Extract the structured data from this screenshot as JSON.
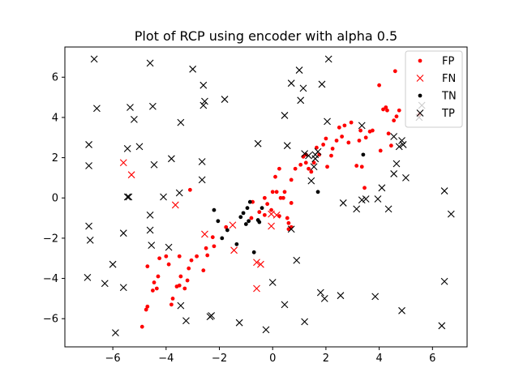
{
  "chart_data": {
    "type": "scatter",
    "title": "Plot of RCP using encoder with alpha 0.5",
    "xlabel": "",
    "ylabel": "",
    "xlim": [
      -7.8,
      7.3
    ],
    "ylim": [
      -7.4,
      7.5
    ],
    "xticks": [
      -6,
      -4,
      -2,
      0,
      2,
      4,
      6
    ],
    "yticks": [
      -6,
      -4,
      -2,
      0,
      2,
      4,
      6
    ],
    "grid": false,
    "legend_position": "top-right",
    "series": [
      {
        "name": "FP",
        "marker": "dot",
        "color": "#ff0000",
        "points": [
          [
            -4.9,
            -6.4
          ],
          [
            -4.7,
            -5.4
          ],
          [
            -4.75,
            -5.55
          ],
          [
            -4.5,
            -4.6
          ],
          [
            -4.45,
            -4.2
          ],
          [
            -4.3,
            -3.9
          ],
          [
            -4.35,
            -4.5
          ],
          [
            -4.7,
            -3.4
          ],
          [
            -4.25,
            -3.0
          ],
          [
            -4.0,
            -2.9
          ],
          [
            -3.9,
            -3.3
          ],
          [
            -3.8,
            -5.3
          ],
          [
            -3.75,
            -5.0
          ],
          [
            -3.6,
            -4.4
          ],
          [
            -3.5,
            -4.35
          ],
          [
            -3.45,
            -3.9
          ],
          [
            -3.5,
            -2.9
          ],
          [
            -3.3,
            -4.5
          ],
          [
            -3.2,
            -4.1
          ],
          [
            -3.15,
            -3.5
          ],
          [
            -3.05,
            -3.1
          ],
          [
            -3.1,
            0.4
          ],
          [
            -2.85,
            -2.9
          ],
          [
            -2.6,
            -3.6
          ],
          [
            -2.5,
            -2.5
          ],
          [
            -2.45,
            -2.85
          ],
          [
            -2.2,
            -2.4
          ],
          [
            -2.25,
            -1.95
          ],
          [
            -1.75,
            -1.45
          ],
          [
            -0.8,
            -1.0
          ],
          [
            -0.75,
            -0.2
          ],
          [
            -0.5,
            -0.7
          ],
          [
            -0.3,
            -0.85
          ],
          [
            -0.2,
            -0.3
          ],
          [
            -0.3,
            0.0
          ],
          [
            -0.05,
            -0.6
          ],
          [
            0.0,
            0.3
          ],
          [
            0.15,
            0.3
          ],
          [
            0.25,
            -0.9
          ],
          [
            0.4,
            0.0
          ],
          [
            0.45,
            0.3
          ],
          [
            0.55,
            -1.0
          ],
          [
            0.6,
            -1.25
          ],
          [
            0.6,
            -1.55
          ],
          [
            0.1,
            1.05
          ],
          [
            0.25,
            1.45
          ],
          [
            0.3,
            0.0
          ],
          [
            0.7,
            -1.45
          ],
          [
            0.7,
            -0.25
          ],
          [
            0.7,
            0.9
          ],
          [
            0.85,
            1.45
          ],
          [
            1.05,
            1.65
          ],
          [
            1.15,
            2.05
          ],
          [
            1.25,
            1.75
          ],
          [
            1.25,
            2.15
          ],
          [
            1.35,
            1.45
          ],
          [
            1.45,
            1.3
          ],
          [
            1.55,
            1.75
          ],
          [
            1.65,
            2.5
          ],
          [
            1.75,
            2.15
          ],
          [
            1.9,
            2.65
          ],
          [
            2.0,
            2.95
          ],
          [
            2.05,
            1.55
          ],
          [
            2.2,
            2.1
          ],
          [
            2.25,
            2.45
          ],
          [
            2.4,
            2.85
          ],
          [
            2.5,
            3.5
          ],
          [
            2.6,
            3.05
          ],
          [
            2.7,
            3.6
          ],
          [
            2.85,
            2.75
          ],
          [
            2.95,
            3.75
          ],
          [
            3.15,
            1.6
          ],
          [
            3.25,
            2.85
          ],
          [
            3.35,
            1.55
          ],
          [
            3.3,
            3.35
          ],
          [
            3.45,
            0.5
          ],
          [
            3.5,
            3.0
          ],
          [
            3.65,
            3.3
          ],
          [
            3.75,
            3.35
          ],
          [
            4.0,
            5.6
          ],
          [
            4.05,
            2.35
          ],
          [
            4.15,
            4.4
          ],
          [
            4.25,
            4.5
          ],
          [
            4.3,
            4.35
          ],
          [
            4.35,
            3.2
          ],
          [
            4.45,
            2.6
          ],
          [
            4.55,
            3.85
          ],
          [
            4.6,
            6.3
          ],
          [
            4.65,
            4.05
          ],
          [
            4.75,
            4.35
          ],
          [
            5.5,
            4.15
          ]
        ]
      },
      {
        "name": "FN",
        "marker": "x",
        "color": "#ff0000",
        "points": [
          [
            -5.6,
            1.75
          ],
          [
            -5.3,
            1.15
          ],
          [
            -3.65,
            -0.35
          ],
          [
            -2.55,
            -1.8
          ],
          [
            -1.5,
            -1.35
          ],
          [
            -1.45,
            -2.6
          ],
          [
            -0.6,
            -4.5
          ],
          [
            -0.6,
            -3.2
          ],
          [
            -0.45,
            -3.3
          ],
          [
            -0.05,
            -0.8
          ],
          [
            -0.05,
            -1.4
          ],
          [
            0.15,
            -0.85
          ]
        ]
      },
      {
        "name": "TN",
        "marker": "dot",
        "color": "#000000",
        "points": [
          [
            -2.2,
            -0.6
          ],
          [
            -2.05,
            -1.15
          ],
          [
            -1.9,
            -2.0
          ],
          [
            -1.7,
            -1.6
          ],
          [
            -1.35,
            -2.3
          ],
          [
            -1.2,
            -0.95
          ],
          [
            -1.1,
            -0.75
          ],
          [
            -1.0,
            -1.3
          ],
          [
            -0.95,
            -0.5
          ],
          [
            -0.9,
            -1.15
          ],
          [
            -0.85,
            -0.2
          ],
          [
            -0.7,
            -2.7
          ],
          [
            -0.55,
            -1.1
          ],
          [
            -0.5,
            -1.2
          ],
          [
            -0.4,
            -0.5
          ],
          [
            1.7,
            0.3
          ],
          [
            3.4,
            2.15
          ]
        ]
      },
      {
        "name": "TP",
        "marker": "x",
        "color": "#000000",
        "points": [
          [
            -6.7,
            6.9
          ],
          [
            -4.6,
            6.7
          ],
          [
            -3.0,
            6.4
          ],
          [
            -2.6,
            5.6
          ],
          [
            -1.8,
            4.9
          ],
          [
            -2.55,
            4.8
          ],
          [
            -2.6,
            4.6
          ],
          [
            -6.6,
            4.45
          ],
          [
            -5.35,
            4.5
          ],
          [
            -4.5,
            4.55
          ],
          [
            -5.2,
            3.9
          ],
          [
            -3.45,
            3.75
          ],
          [
            -6.9,
            2.65
          ],
          [
            -5.45,
            2.45
          ],
          [
            -5.0,
            2.55
          ],
          [
            -3.8,
            1.95
          ],
          [
            -2.65,
            1.8
          ],
          [
            -6.9,
            1.6
          ],
          [
            -4.45,
            1.65
          ],
          [
            -2.65,
            0.9
          ],
          [
            -5.45,
            0.05
          ],
          [
            -5.4,
            0.05
          ],
          [
            -4.1,
            0.05
          ],
          [
            -3.5,
            0.25
          ],
          [
            -6.9,
            -1.4
          ],
          [
            -6.85,
            -2.1
          ],
          [
            -5.6,
            -1.75
          ],
          [
            -4.6,
            -0.85
          ],
          [
            -4.6,
            -1.6
          ],
          [
            -4.55,
            -2.35
          ],
          [
            -3.9,
            -2.45
          ],
          [
            -6.0,
            -3.3
          ],
          [
            -6.95,
            -3.95
          ],
          [
            -6.3,
            -4.25
          ],
          [
            -5.6,
            -4.45
          ],
          [
            -3.45,
            -5.35
          ],
          [
            -3.25,
            -6.1
          ],
          [
            -2.35,
            -5.9
          ],
          [
            -2.3,
            -5.85
          ],
          [
            -1.25,
            -6.2
          ],
          [
            -0.25,
            -6.55
          ],
          [
            -5.9,
            -6.7
          ],
          [
            0.0,
            -4.2
          ],
          [
            0.45,
            -5.3
          ],
          [
            0.7,
            -1.55
          ],
          [
            0.9,
            -3.1
          ],
          [
            1.2,
            -6.15
          ],
          [
            1.8,
            -4.7
          ],
          [
            1.95,
            -5.0
          ],
          [
            2.55,
            -4.85
          ],
          [
            3.85,
            -4.9
          ],
          [
            4.85,
            -5.6
          ],
          [
            6.35,
            -6.35
          ],
          [
            6.45,
            -4.15
          ],
          [
            6.45,
            0.35
          ],
          [
            6.7,
            -0.8
          ],
          [
            -0.55,
            2.7
          ],
          [
            0.45,
            4.1
          ],
          [
            0.55,
            2.6
          ],
          [
            0.7,
            5.7
          ],
          [
            1.0,
            6.35
          ],
          [
            1.05,
            4.85
          ],
          [
            1.15,
            5.45
          ],
          [
            1.2,
            2.2
          ],
          [
            1.35,
            2.1
          ],
          [
            1.45,
            0.85
          ],
          [
            1.55,
            1.55
          ],
          [
            1.6,
            2.15
          ],
          [
            1.6,
            1.95
          ],
          [
            1.7,
            2.3
          ],
          [
            1.85,
            5.65
          ],
          [
            2.1,
            6.9
          ],
          [
            2.05,
            3.8
          ],
          [
            2.65,
            -0.25
          ],
          [
            3.15,
            -0.55
          ],
          [
            3.35,
            3.6
          ],
          [
            3.35,
            -0.1
          ],
          [
            3.5,
            -0.05
          ],
          [
            3.95,
            -0.05
          ],
          [
            4.1,
            0.5
          ],
          [
            4.35,
            -0.55
          ],
          [
            4.55,
            1.2
          ],
          [
            4.55,
            3.05
          ],
          [
            4.65,
            1.7
          ],
          [
            4.75,
            2.55
          ],
          [
            4.85,
            2.85
          ],
          [
            4.9,
            2.65
          ],
          [
            5.0,
            1.0
          ],
          [
            5.5,
            4.0
          ],
          [
            5.6,
            4.6
          ]
        ]
      }
    ]
  }
}
